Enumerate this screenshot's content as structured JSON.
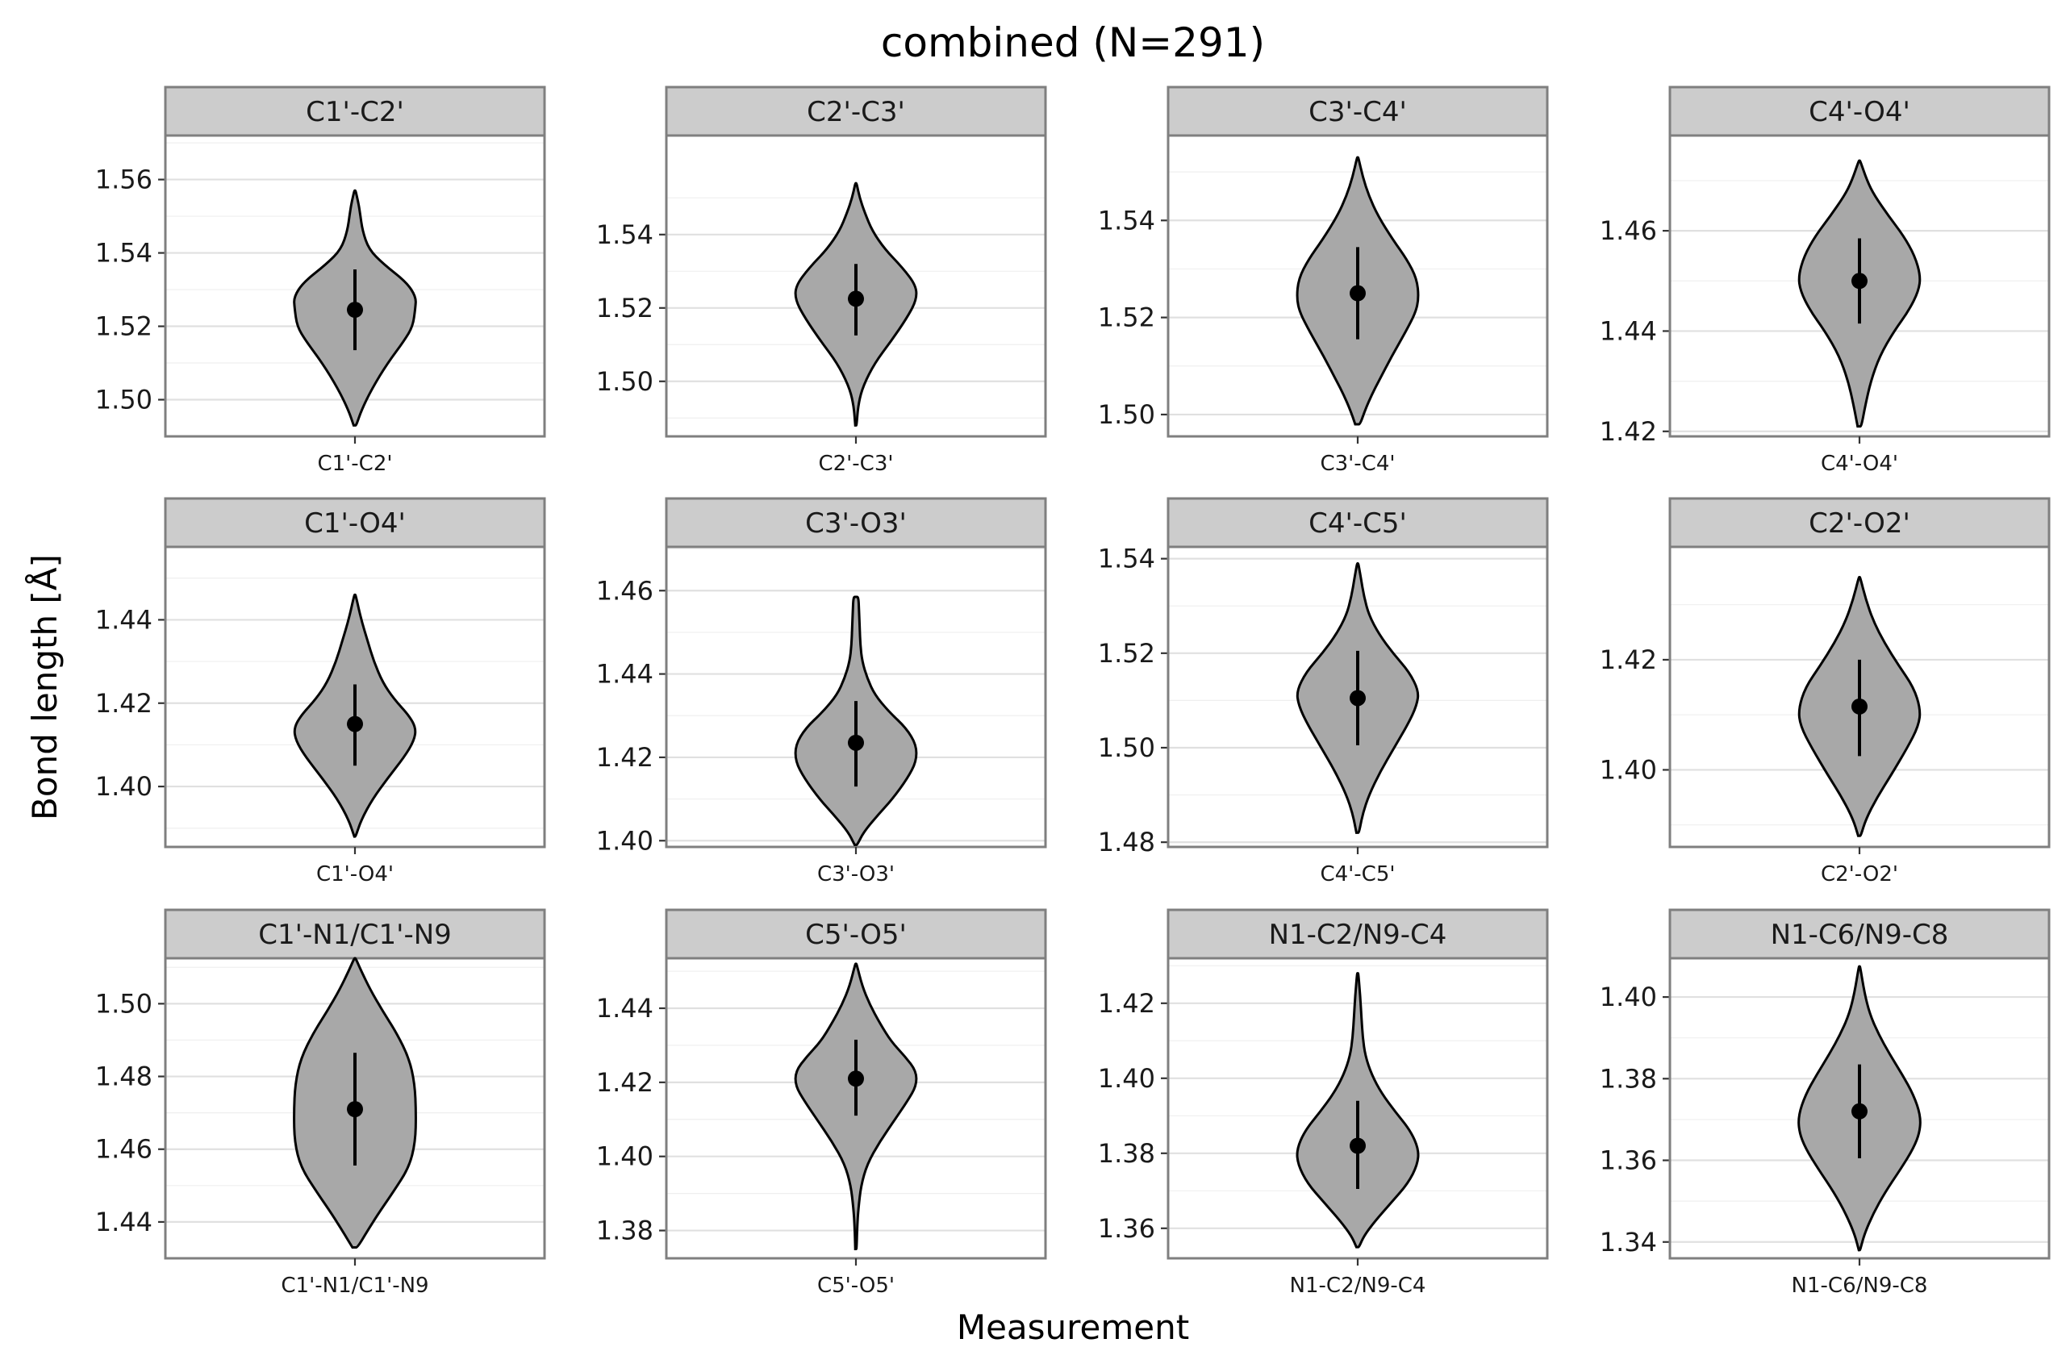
{
  "chart_data": {
    "type": "violin",
    "title": "combined (N=291)",
    "xlabel": "Measurement",
    "ylabel": "Bond length [Å]",
    "colors": {
      "violin_fill": "#a8a8a8",
      "violin_stroke": "#000000",
      "strip_fill": "#cccccc"
    },
    "panels": [
      {
        "label": "C1'-C2'",
        "xtick": "C1'-C2'",
        "ylim": [
          1.49,
          1.572
        ],
        "yticks": [
          1.5,
          1.52,
          1.54,
          1.56
        ],
        "ytick_labels": [
          "1.50",
          "1.52",
          "1.54",
          "1.56"
        ],
        "min": 1.493,
        "max": 1.557,
        "mean": 1.5245,
        "sd_low": 1.5135,
        "sd_high": 1.5355,
        "profile": [
          [
            1.493,
            0.02
          ],
          [
            1.497,
            0.1
          ],
          [
            1.503,
            0.27
          ],
          [
            1.51,
            0.52
          ],
          [
            1.516,
            0.78
          ],
          [
            1.52,
            0.92
          ],
          [
            1.525,
            0.96
          ],
          [
            1.528,
            0.97
          ],
          [
            1.532,
            0.82
          ],
          [
            1.537,
            0.45
          ],
          [
            1.541,
            0.22
          ],
          [
            1.546,
            0.12
          ],
          [
            1.551,
            0.08
          ],
          [
            1.554,
            0.05
          ],
          [
            1.557,
            0.01
          ]
        ]
      },
      {
        "label": "C2'-C3'",
        "xtick": "C2'-C3'",
        "ylim": [
          1.485,
          1.567
        ],
        "yticks": [
          1.5,
          1.52,
          1.54
        ],
        "ytick_labels": [
          "1.50",
          "1.52",
          "1.54"
        ],
        "min": 1.488,
        "max": 1.554,
        "mean": 1.5225,
        "sd_low": 1.5125,
        "sd_high": 1.532,
        "profile": [
          [
            1.488,
            0.01
          ],
          [
            1.494,
            0.04
          ],
          [
            1.499,
            0.12
          ],
          [
            1.505,
            0.3
          ],
          [
            1.511,
            0.56
          ],
          [
            1.517,
            0.8
          ],
          [
            1.522,
            0.96
          ],
          [
            1.526,
            0.96
          ],
          [
            1.531,
            0.74
          ],
          [
            1.536,
            0.46
          ],
          [
            1.541,
            0.26
          ],
          [
            1.546,
            0.14
          ],
          [
            1.55,
            0.06
          ],
          [
            1.554,
            0.01
          ]
        ]
      },
      {
        "label": "C3'-C4'",
        "xtick": "C3'-C4'",
        "ylim": [
          1.4955,
          1.5575
        ],
        "yticks": [
          1.5,
          1.52,
          1.54
        ],
        "ytick_labels": [
          "1.50",
          "1.52",
          "1.54"
        ],
        "min": 1.498,
        "max": 1.553,
        "mean": 1.525,
        "sd_low": 1.5155,
        "sd_high": 1.5345,
        "profile": [
          [
            1.498,
            0.04
          ],
          [
            1.501,
            0.12
          ],
          [
            1.504,
            0.22
          ],
          [
            1.507,
            0.34
          ],
          [
            1.512,
            0.54
          ],
          [
            1.517,
            0.76
          ],
          [
            1.521,
            0.92
          ],
          [
            1.524,
            0.97
          ],
          [
            1.528,
            0.94
          ],
          [
            1.532,
            0.78
          ],
          [
            1.536,
            0.56
          ],
          [
            1.541,
            0.32
          ],
          [
            1.545,
            0.18
          ],
          [
            1.549,
            0.08
          ],
          [
            1.553,
            0.01
          ]
        ]
      },
      {
        "label": "C4'-O4'",
        "xtick": "C4'-O4'",
        "ylim": [
          1.419,
          1.479
        ],
        "yticks": [
          1.42,
          1.44,
          1.46
        ],
        "ytick_labels": [
          "1.42",
          "1.44",
          "1.46"
        ],
        "min": 1.421,
        "max": 1.474,
        "mean": 1.45,
        "sd_low": 1.4415,
        "sd_high": 1.4585,
        "profile": [
          [
            1.421,
            0.03
          ],
          [
            1.425,
            0.09
          ],
          [
            1.43,
            0.18
          ],
          [
            1.435,
            0.32
          ],
          [
            1.44,
            0.55
          ],
          [
            1.444,
            0.78
          ],
          [
            1.448,
            0.94
          ],
          [
            1.451,
            0.97
          ],
          [
            1.455,
            0.88
          ],
          [
            1.459,
            0.7
          ],
          [
            1.463,
            0.46
          ],
          [
            1.467,
            0.24
          ],
          [
            1.47,
            0.12
          ],
          [
            1.474,
            0.01
          ]
        ]
      },
      {
        "label": "C1'-O4'",
        "xtick": "C1'-O4'",
        "ylim": [
          1.3855,
          1.4575
        ],
        "yticks": [
          1.4,
          1.42,
          1.44
        ],
        "ytick_labels": [
          "1.40",
          "1.42",
          "1.44"
        ],
        "min": 1.388,
        "max": 1.446,
        "mean": 1.415,
        "sd_low": 1.405,
        "sd_high": 1.4245,
        "profile": [
          [
            1.388,
            0.01
          ],
          [
            1.392,
            0.1
          ],
          [
            1.397,
            0.28
          ],
          [
            1.402,
            0.52
          ],
          [
            1.407,
            0.78
          ],
          [
            1.411,
            0.94
          ],
          [
            1.414,
            0.97
          ],
          [
            1.417,
            0.86
          ],
          [
            1.421,
            0.62
          ],
          [
            1.425,
            0.44
          ],
          [
            1.43,
            0.3
          ],
          [
            1.435,
            0.2
          ],
          [
            1.44,
            0.1
          ],
          [
            1.446,
            0.01
          ]
        ]
      },
      {
        "label": "C3'-O3'",
        "xtick": "C3'-O3'",
        "ylim": [
          1.3985,
          1.4705
        ],
        "yticks": [
          1.4,
          1.42,
          1.44,
          1.46
        ],
        "ytick_labels": [
          "1.40",
          "1.42",
          "1.44",
          "1.46"
        ],
        "min": 1.399,
        "max": 1.4585,
        "mean": 1.4235,
        "sd_low": 1.413,
        "sd_high": 1.4335,
        "profile": [
          [
            1.399,
            0.02
          ],
          [
            1.402,
            0.12
          ],
          [
            1.406,
            0.34
          ],
          [
            1.41,
            0.58
          ],
          [
            1.415,
            0.82
          ],
          [
            1.419,
            0.96
          ],
          [
            1.423,
            0.96
          ],
          [
            1.427,
            0.8
          ],
          [
            1.431,
            0.52
          ],
          [
            1.435,
            0.3
          ],
          [
            1.439,
            0.18
          ],
          [
            1.443,
            0.1
          ],
          [
            1.447,
            0.07
          ],
          [
            1.451,
            0.06
          ],
          [
            1.455,
            0.05
          ],
          [
            1.4585,
            0.04
          ]
        ]
      },
      {
        "label": "C4'-C5'",
        "xtick": "C4'-C5'",
        "ylim": [
          1.479,
          1.5425
        ],
        "yticks": [
          1.48,
          1.5,
          1.52,
          1.54
        ],
        "ytick_labels": [
          "1.48",
          "1.50",
          "1.52",
          "1.54"
        ],
        "min": 1.482,
        "max": 1.539,
        "mean": 1.5105,
        "sd_low": 1.5005,
        "sd_high": 1.5205,
        "profile": [
          [
            1.482,
            0.02
          ],
          [
            1.486,
            0.08
          ],
          [
            1.49,
            0.18
          ],
          [
            1.495,
            0.36
          ],
          [
            1.5,
            0.58
          ],
          [
            1.505,
            0.8
          ],
          [
            1.509,
            0.94
          ],
          [
            1.512,
            0.97
          ],
          [
            1.516,
            0.82
          ],
          [
            1.52,
            0.56
          ],
          [
            1.524,
            0.34
          ],
          [
            1.528,
            0.18
          ],
          [
            1.532,
            0.1
          ],
          [
            1.536,
            0.05
          ],
          [
            1.539,
            0.01
          ]
        ]
      },
      {
        "label": "C2'-O2'",
        "xtick": "C2'-O2'",
        "ylim": [
          1.386,
          1.4405
        ],
        "yticks": [
          1.4,
          1.42
        ],
        "ytick_labels": [
          "1.40",
          "1.42"
        ],
        "min": 1.388,
        "max": 1.435,
        "mean": 1.4115,
        "sd_low": 1.4025,
        "sd_high": 1.42,
        "profile": [
          [
            1.388,
            0.02
          ],
          [
            1.391,
            0.1
          ],
          [
            1.395,
            0.28
          ],
          [
            1.399,
            0.5
          ],
          [
            1.404,
            0.76
          ],
          [
            1.408,
            0.94
          ],
          [
            1.411,
            0.97
          ],
          [
            1.415,
            0.86
          ],
          [
            1.419,
            0.62
          ],
          [
            1.423,
            0.4
          ],
          [
            1.427,
            0.22
          ],
          [
            1.431,
            0.1
          ],
          [
            1.435,
            0.01
          ]
        ]
      },
      {
        "label": "C1'-N1/C1'-N9",
        "xtick": "C1'-N1/C1'-N9",
        "ylim": [
          1.43,
          1.5125
        ],
        "yticks": [
          1.44,
          1.46,
          1.48,
          1.5
        ],
        "ytick_labels": [
          "1.44",
          "1.46",
          "1.48",
          "1.50"
        ],
        "min": 1.433,
        "max": 1.5125,
        "mean": 1.471,
        "sd_low": 1.4555,
        "sd_high": 1.4865,
        "profile": [
          [
            1.433,
            0.04
          ],
          [
            1.437,
            0.18
          ],
          [
            1.442,
            0.36
          ],
          [
            1.448,
            0.6
          ],
          [
            1.455,
            0.86
          ],
          [
            1.462,
            0.96
          ],
          [
            1.47,
            0.97
          ],
          [
            1.478,
            0.95
          ],
          [
            1.485,
            0.86
          ],
          [
            1.492,
            0.66
          ],
          [
            1.498,
            0.44
          ],
          [
            1.504,
            0.24
          ],
          [
            1.509,
            0.1
          ],
          [
            1.5125,
            0.01
          ]
        ]
      },
      {
        "label": "C5'-O5'",
        "xtick": "C5'-O5'",
        "ylim": [
          1.3725,
          1.4535
        ],
        "yticks": [
          1.38,
          1.4,
          1.42,
          1.44
        ],
        "ytick_labels": [
          "1.38",
          "1.40",
          "1.42",
          "1.44"
        ],
        "min": 1.375,
        "max": 1.452,
        "mean": 1.421,
        "sd_low": 1.411,
        "sd_high": 1.4315,
        "profile": [
          [
            1.375,
            0.01
          ],
          [
            1.381,
            0.02
          ],
          [
            1.386,
            0.04
          ],
          [
            1.392,
            0.08
          ],
          [
            1.398,
            0.18
          ],
          [
            1.404,
            0.38
          ],
          [
            1.41,
            0.62
          ],
          [
            1.415,
            0.82
          ],
          [
            1.419,
            0.96
          ],
          [
            1.423,
            0.96
          ],
          [
            1.427,
            0.78
          ],
          [
            1.431,
            0.56
          ],
          [
            1.436,
            0.38
          ],
          [
            1.441,
            0.22
          ],
          [
            1.446,
            0.1
          ],
          [
            1.452,
            0.01
          ]
        ]
      },
      {
        "label": "N1-C2/N9-C4",
        "xtick": "N1-C2/N9-C4",
        "ylim": [
          1.352,
          1.432
        ],
        "yticks": [
          1.36,
          1.38,
          1.4,
          1.42
        ],
        "ytick_labels": [
          "1.36",
          "1.38",
          "1.40",
          "1.42"
        ],
        "min": 1.355,
        "max": 1.428,
        "mean": 1.382,
        "sd_low": 1.3705,
        "sd_high": 1.394,
        "profile": [
          [
            1.355,
            0.02
          ],
          [
            1.358,
            0.1
          ],
          [
            1.362,
            0.28
          ],
          [
            1.367,
            0.54
          ],
          [
            1.372,
            0.8
          ],
          [
            1.377,
            0.95
          ],
          [
            1.381,
            0.97
          ],
          [
            1.386,
            0.84
          ],
          [
            1.391,
            0.6
          ],
          [
            1.396,
            0.38
          ],
          [
            1.401,
            0.22
          ],
          [
            1.406,
            0.12
          ],
          [
            1.411,
            0.08
          ],
          [
            1.416,
            0.06
          ],
          [
            1.422,
            0.04
          ],
          [
            1.428,
            0.01
          ]
        ]
      },
      {
        "label": "N1-C6/N9-C8",
        "xtick": "N1-C6/N9-C8",
        "ylim": [
          1.336,
          1.4095
        ],
        "yticks": [
          1.34,
          1.36,
          1.38,
          1.4
        ],
        "ytick_labels": [
          "1.34",
          "1.36",
          "1.38",
          "1.40"
        ],
        "min": 1.338,
        "max": 1.4075,
        "mean": 1.372,
        "sd_low": 1.3605,
        "sd_high": 1.3835,
        "profile": [
          [
            1.338,
            0.01
          ],
          [
            1.342,
            0.08
          ],
          [
            1.347,
            0.22
          ],
          [
            1.352,
            0.4
          ],
          [
            1.358,
            0.66
          ],
          [
            1.363,
            0.86
          ],
          [
            1.367,
            0.96
          ],
          [
            1.371,
            0.97
          ],
          [
            1.376,
            0.86
          ],
          [
            1.381,
            0.68
          ],
          [
            1.386,
            0.48
          ],
          [
            1.391,
            0.3
          ],
          [
            1.396,
            0.16
          ],
          [
            1.401,
            0.08
          ],
          [
            1.4075,
            0.01
          ]
        ]
      }
    ]
  }
}
